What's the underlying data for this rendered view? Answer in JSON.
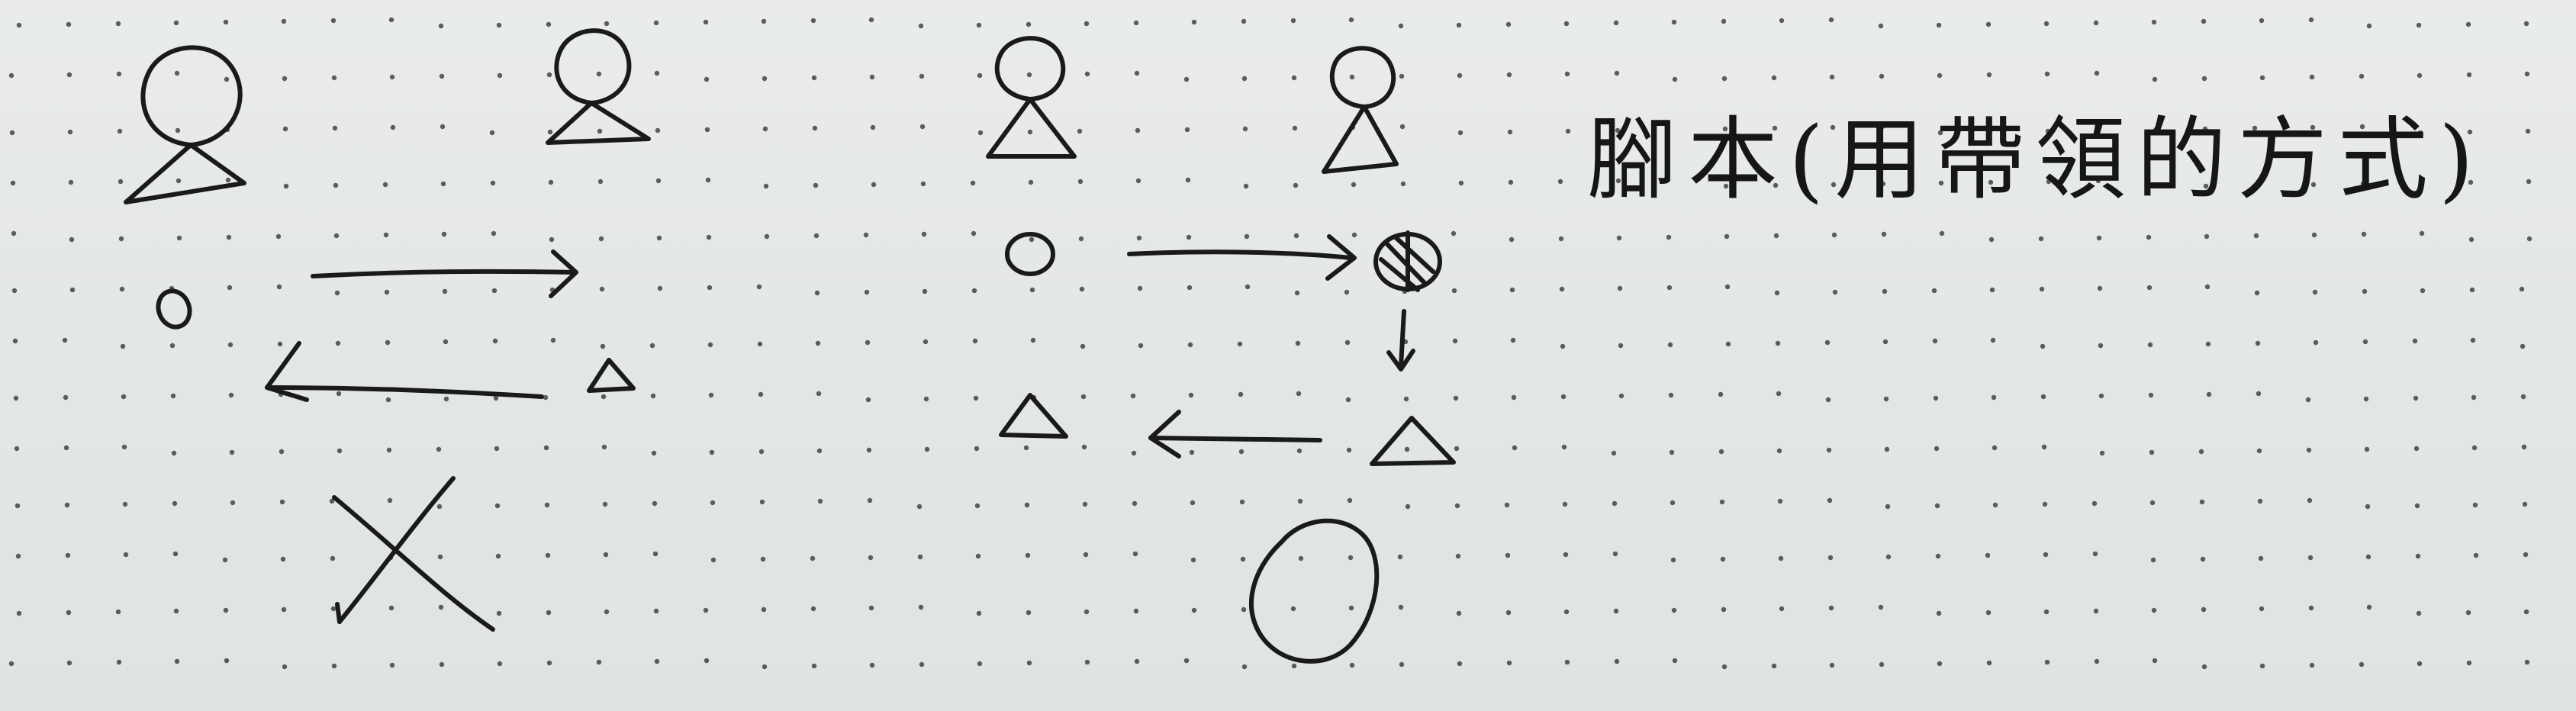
{
  "page": {
    "background_color": "#e6e9e6",
    "ink_color": "#1a1a1a",
    "dot_color": "#2c2c2c"
  },
  "caption": {
    "text": "腳本(用帶領的方式)"
  },
  "diagrams": [
    {
      "id": "left",
      "figures": [
        "person-icon",
        "person-icon"
      ],
      "shapes": [
        "circle-mark",
        "triangle-mark"
      ],
      "arrows": [
        "arrow-right",
        "arrow-left"
      ],
      "verdict_icon": "cross-mark-icon"
    },
    {
      "id": "right",
      "figures": [
        "person-icon",
        "person-icon"
      ],
      "shapes": [
        "circle-mark",
        "hatched-circle-mark",
        "triangle-mark",
        "triangle-mark"
      ],
      "arrows": [
        "arrow-right",
        "arrow-down",
        "arrow-left"
      ],
      "verdict_icon": "circle-ok-mark-icon"
    }
  ]
}
